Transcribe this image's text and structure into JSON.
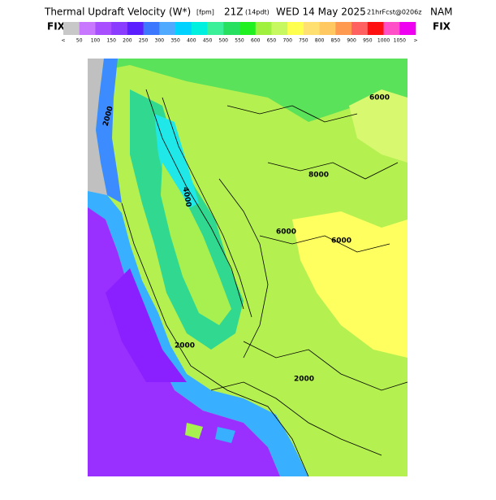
{
  "header": {
    "title_parts": [
      "Thermal Updraft Velocity (W*)",
      "[fpm]",
      "21Z",
      "(14pdt)",
      "WED 14 May 2025",
      "21hrFcst@0206z",
      "NAM"
    ],
    "fix_left": "FIX",
    "fix_right": "FIX"
  },
  "legend": {
    "colors": [
      "#c8c8c8",
      "#c878ff",
      "#a850ff",
      "#8a3cff",
      "#5a1eff",
      "#3c78ff",
      "#50aaff",
      "#00d2ff",
      "#00f0e0",
      "#3cf09a",
      "#28e060",
      "#20f020",
      "#a0f040",
      "#c8f860",
      "#ffff50",
      "#ffe070",
      "#ffc860",
      "#ff9a50",
      "#ff6060",
      "#ff1010",
      "#ff50c8",
      "#f000f0"
    ],
    "labels": [
      "<",
      "50",
      "100",
      "150",
      "200",
      "250",
      "300",
      "350",
      "400",
      "450",
      "500",
      "550",
      "600",
      "650",
      "700",
      "750",
      "800",
      "850",
      "900",
      "950",
      "1000",
      "1050",
      ">"
    ]
  },
  "map": {
    "contour_labels": [
      "6000",
      "8000",
      "6000",
      "6000",
      "2000",
      "2000",
      "2000",
      "4000"
    ]
  }
}
